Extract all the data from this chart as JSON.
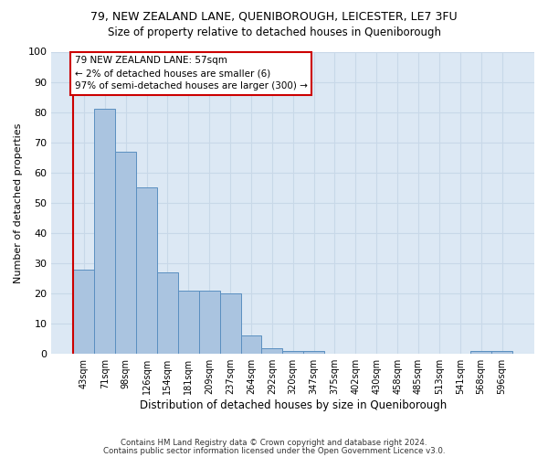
{
  "title1": "79, NEW ZEALAND LANE, QUENIBOROUGH, LEICESTER, LE7 3FU",
  "title2": "Size of property relative to detached houses in Queniborough",
  "xlabel": "Distribution of detached houses by size in Queniborough",
  "ylabel": "Number of detached properties",
  "bar_labels": [
    "43sqm",
    "71sqm",
    "98sqm",
    "126sqm",
    "154sqm",
    "181sqm",
    "209sqm",
    "237sqm",
    "264sqm",
    "292sqm",
    "320sqm",
    "347sqm",
    "375sqm",
    "402sqm",
    "430sqm",
    "458sqm",
    "485sqm",
    "513sqm",
    "541sqm",
    "568sqm",
    "596sqm"
  ],
  "bar_values": [
    28,
    81,
    67,
    55,
    27,
    21,
    21,
    20,
    6,
    2,
    1,
    1,
    0,
    0,
    0,
    0,
    0,
    0,
    0,
    1,
    1
  ],
  "bar_color": "#aac4e0",
  "bar_edge_color": "#5a8fc0",
  "grid_color": "#c8d8e8",
  "bg_color": "#dce8f4",
  "annotation_line1": "79 NEW ZEALAND LANE: 57sqm",
  "annotation_line2": "← 2% of detached houses are smaller (6)",
  "annotation_line3": "97% of semi-detached houses are larger (300) →",
  "annotation_box_color": "#ffffff",
  "annotation_box_edge": "#cc0000",
  "vline_color": "#cc0000",
  "ylim": [
    0,
    100
  ],
  "yticks": [
    0,
    10,
    20,
    30,
    40,
    50,
    60,
    70,
    80,
    90,
    100
  ],
  "footnote1": "Contains HM Land Registry data © Crown copyright and database right 2024.",
  "footnote2": "Contains public sector information licensed under the Open Government Licence v3.0."
}
